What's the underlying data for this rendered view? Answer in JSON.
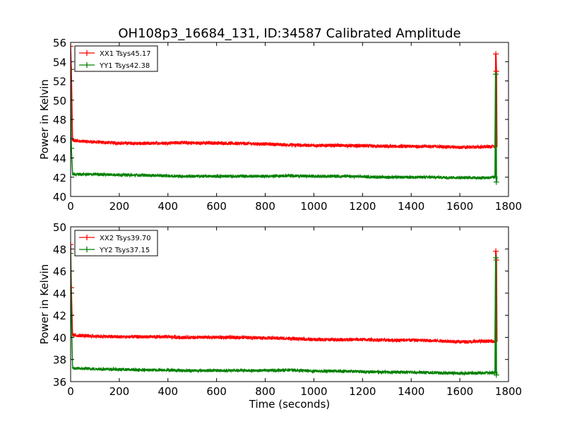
{
  "title": "OH108p3_16684_131, ID:34587 Calibrated Amplitude",
  "colors": {
    "xx": "#ff0000",
    "yy": "#008000",
    "axes": "#000000",
    "background": "#ffffff"
  },
  "chart_data": [
    {
      "type": "line",
      "title": "OH108p3_16684_131, ID:34587 Calibrated Amplitude",
      "xlabel": "",
      "ylabel": "Power in Kelvin",
      "xlim": [
        0,
        1800
      ],
      "ylim": [
        40,
        56
      ],
      "xticks": [
        0,
        200,
        400,
        600,
        800,
        1000,
        1200,
        1400,
        1600,
        1800
      ],
      "yticks": [
        40,
        42,
        44,
        46,
        48,
        50,
        52,
        54,
        56
      ],
      "grid": false,
      "legend_position": "top-left",
      "series": [
        {
          "name": "XX1 Tsys45.17",
          "color": "#ff0000",
          "noise": 0.18,
          "x": [
            0,
            3,
            8,
            100,
            200,
            300,
            400,
            450,
            500,
            600,
            700,
            800,
            900,
            1000,
            1100,
            1200,
            1300,
            1400,
            1500,
            1600,
            1700,
            1745,
            1748,
            1750,
            1752,
            1755
          ],
          "y": [
            55.6,
            53.2,
            45.8,
            45.65,
            45.55,
            45.5,
            45.55,
            45.6,
            45.55,
            45.55,
            45.5,
            45.45,
            45.35,
            45.3,
            45.3,
            45.25,
            45.2,
            45.2,
            45.2,
            45.1,
            45.15,
            45.2,
            54.8,
            53.0,
            45.2,
            45.2
          ]
        },
        {
          "name": "YY1 Tsys42.38",
          "color": "#008000",
          "noise": 0.16,
          "x": [
            0,
            3,
            8,
            100,
            200,
            300,
            400,
            450,
            500,
            600,
            700,
            800,
            900,
            1000,
            1100,
            1200,
            1300,
            1400,
            1500,
            1600,
            1700,
            1745,
            1748,
            1750,
            1752,
            1755
          ],
          "y": [
            53.2,
            45.0,
            42.3,
            42.3,
            42.25,
            42.2,
            42.15,
            42.1,
            42.1,
            42.1,
            42.1,
            42.1,
            42.15,
            42.1,
            42.1,
            42.05,
            42.0,
            42.0,
            42.0,
            41.95,
            41.95,
            42.0,
            52.7,
            41.5,
            42.0,
            42.0
          ]
        }
      ]
    },
    {
      "type": "line",
      "title": "",
      "xlabel": "Time (seconds)",
      "ylabel": "Power in Kelvin",
      "xlim": [
        0,
        1800
      ],
      "ylim": [
        36,
        50
      ],
      "xticks": [
        0,
        200,
        400,
        600,
        800,
        1000,
        1200,
        1400,
        1600,
        1800
      ],
      "yticks": [
        36,
        38,
        40,
        42,
        44,
        46,
        48,
        50
      ],
      "grid": false,
      "legend_position": "top-left",
      "series": [
        {
          "name": "XX2 Tsys39.70",
          "color": "#ff0000",
          "noise": 0.16,
          "x": [
            0,
            3,
            8,
            100,
            200,
            300,
            400,
            450,
            500,
            600,
            700,
            800,
            900,
            1000,
            1100,
            1200,
            1300,
            1400,
            1500,
            1600,
            1700,
            1745,
            1748,
            1750,
            1752,
            1755
          ],
          "y": [
            48.4,
            44.5,
            40.2,
            40.1,
            40.05,
            40.05,
            40.05,
            40.0,
            40.0,
            40.0,
            40.0,
            39.95,
            39.9,
            39.8,
            39.8,
            39.8,
            39.75,
            39.75,
            39.7,
            39.6,
            39.65,
            39.65,
            47.8,
            47.0,
            39.65,
            39.65
          ]
        },
        {
          "name": "YY2 Tsys37.15",
          "color": "#008000",
          "noise": 0.14,
          "x": [
            0,
            3,
            8,
            100,
            200,
            300,
            400,
            450,
            500,
            600,
            700,
            800,
            900,
            1000,
            1100,
            1200,
            1300,
            1400,
            1500,
            1600,
            1700,
            1745,
            1748,
            1750,
            1752,
            1755
          ],
          "y": [
            47.6,
            42.0,
            37.2,
            37.15,
            37.1,
            37.05,
            37.05,
            37.0,
            37.0,
            37.0,
            37.0,
            37.0,
            37.05,
            36.95,
            36.95,
            36.9,
            36.85,
            36.85,
            36.8,
            36.75,
            36.8,
            36.8,
            47.2,
            36.6,
            36.8,
            36.8
          ]
        }
      ]
    }
  ]
}
